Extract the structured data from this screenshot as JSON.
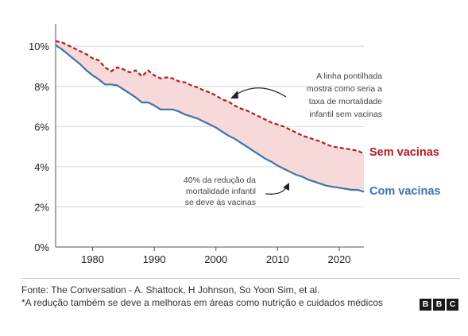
{
  "chart_data": {
    "type": "line",
    "xlim": [
      1974,
      2024
    ],
    "ylim": [
      0,
      10.8
    ],
    "y_ticks": [
      0,
      2,
      4,
      6,
      8,
      10
    ],
    "y_tick_labels": [
      "0%",
      "2%",
      "4%",
      "6%",
      "8%",
      "10%"
    ],
    "x_ticks": [
      1980,
      1990,
      2000,
      2010,
      2020
    ],
    "x_tick_labels": [
      "1980",
      "1990",
      "2000",
      "2010",
      "2020"
    ],
    "grid": "horizontal",
    "fill_between": {
      "color": "#f7d9d9"
    },
    "series": [
      {
        "name": "Sem vacinas",
        "style": "dashed",
        "color": "#b51b21",
        "x": [
          1974,
          1975,
          1976,
          1977,
          1978,
          1979,
          1980,
          1981,
          1982,
          1983,
          1984,
          1985,
          1986,
          1987,
          1988,
          1989,
          1990,
          1991,
          1992,
          1993,
          1994,
          1995,
          1996,
          1997,
          1998,
          1999,
          2000,
          2001,
          2002,
          2003,
          2004,
          2005,
          2006,
          2007,
          2008,
          2009,
          2010,
          2011,
          2012,
          2013,
          2014,
          2015,
          2016,
          2017,
          2018,
          2019,
          2020,
          2021,
          2022,
          2023,
          2024
        ],
        "values": [
          10.25,
          10.2,
          10.05,
          9.9,
          9.75,
          9.6,
          9.4,
          9.3,
          8.95,
          8.75,
          8.95,
          8.85,
          8.7,
          8.8,
          8.5,
          8.8,
          8.55,
          8.4,
          8.45,
          8.4,
          8.25,
          8.2,
          8.05,
          7.95,
          7.8,
          7.7,
          7.55,
          7.35,
          7.25,
          7.05,
          6.9,
          6.8,
          6.65,
          6.5,
          6.35,
          6.2,
          6.1,
          6.0,
          5.85,
          5.7,
          5.55,
          5.45,
          5.35,
          5.25,
          5.1,
          5.0,
          4.95,
          4.9,
          4.85,
          4.8,
          4.65
        ]
      },
      {
        "name": "Com vacinas",
        "style": "solid",
        "color": "#3d74ad",
        "x": [
          1974,
          1975,
          1976,
          1977,
          1978,
          1979,
          1980,
          1981,
          1982,
          1983,
          1984,
          1985,
          1986,
          1987,
          1988,
          1989,
          1990,
          1991,
          1992,
          1993,
          1994,
          1995,
          1996,
          1997,
          1998,
          1999,
          2000,
          2001,
          2002,
          2003,
          2004,
          2005,
          2006,
          2007,
          2008,
          2009,
          2010,
          2011,
          2012,
          2013,
          2014,
          2015,
          2016,
          2017,
          2018,
          2019,
          2020,
          2021,
          2022,
          2023,
          2024
        ],
        "values": [
          10.05,
          9.85,
          9.6,
          9.35,
          9.1,
          8.8,
          8.55,
          8.35,
          8.1,
          8.1,
          8.05,
          7.85,
          7.65,
          7.45,
          7.2,
          7.2,
          7.05,
          6.85,
          6.85,
          6.85,
          6.75,
          6.6,
          6.5,
          6.4,
          6.25,
          6.1,
          5.95,
          5.75,
          5.55,
          5.4,
          5.2,
          5.0,
          4.8,
          4.6,
          4.4,
          4.25,
          4.05,
          3.9,
          3.75,
          3.6,
          3.5,
          3.35,
          3.25,
          3.15,
          3.05,
          3.0,
          2.95,
          2.9,
          2.85,
          2.85,
          2.75
        ]
      }
    ],
    "annotations": [
      {
        "lines": [
          "A linha pontilhada",
          "mostra como seria a",
          "taxa de mortalidade",
          "infantil sem vacinas"
        ],
        "points_to": "Sem vacinas"
      },
      {
        "lines": [
          "40% da redução da",
          "mortalidade infantil",
          "se deve às vacinas"
        ],
        "points_to": "fill"
      }
    ]
  },
  "footer": {
    "source": "Fonte: The Conversation - A. Shattock, H Johnson, So Yoon Sim, et al.",
    "note": "*A redução também se deve a melhoras em áreas como nutrição e cuidados médicos"
  },
  "logo": {
    "letters": [
      "B",
      "B",
      "C"
    ]
  }
}
